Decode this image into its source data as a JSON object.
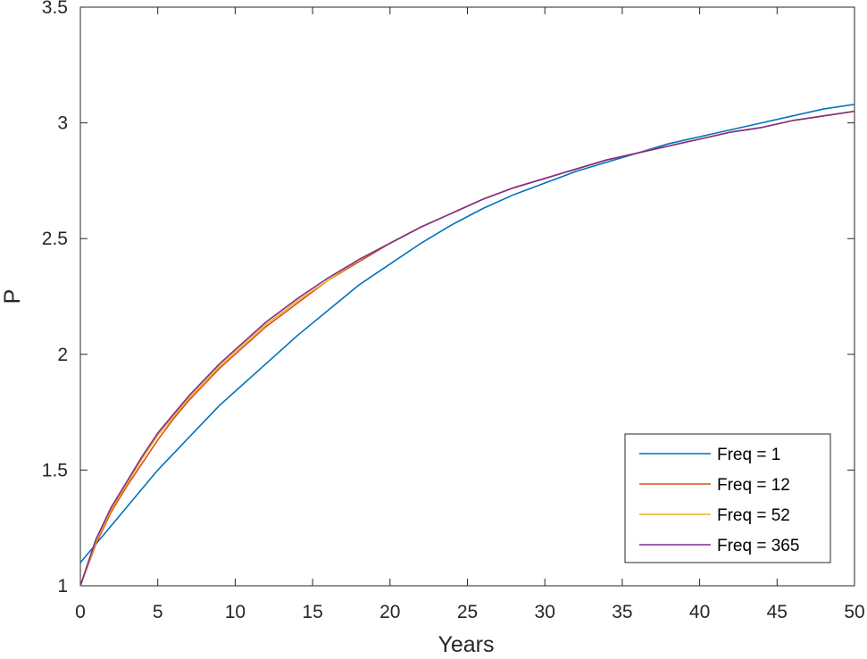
{
  "chart_data": {
    "type": "line",
    "title": "",
    "xlabel": "Years",
    "ylabel": "P",
    "xlim": [
      0,
      50
    ],
    "ylim": [
      1,
      3.5
    ],
    "xticks": [
      "0",
      "5",
      "10",
      "15",
      "20",
      "25",
      "30",
      "35",
      "40",
      "45",
      "50"
    ],
    "yticks": [
      "1",
      "1.5",
      "2",
      "2.5",
      "3",
      "3.5"
    ],
    "grid": false,
    "legend_position": "bottom-right",
    "x": [
      0,
      1,
      2,
      3,
      4,
      5,
      6,
      7,
      8,
      9,
      10,
      12,
      14,
      16,
      18,
      20,
      22,
      24,
      26,
      28,
      30,
      32,
      34,
      36,
      38,
      40,
      42,
      44,
      46,
      48,
      50
    ],
    "series": [
      {
        "name": "Freq = 1",
        "color": "#0072BD",
        "values": [
          1.1,
          1.18,
          1.26,
          1.34,
          1.42,
          1.5,
          1.57,
          1.64,
          1.71,
          1.78,
          1.84,
          1.96,
          2.08,
          2.19,
          2.3,
          2.39,
          2.48,
          2.56,
          2.63,
          2.69,
          2.74,
          2.79,
          2.83,
          2.87,
          2.91,
          2.94,
          2.97,
          3.0,
          3.03,
          3.06,
          3.08
        ]
      },
      {
        "name": "Freq = 12",
        "color": "#D95319",
        "values": [
          1.0,
          1.18,
          1.32,
          1.43,
          1.53,
          1.63,
          1.72,
          1.8,
          1.87,
          1.94,
          2.0,
          2.12,
          2.22,
          2.32,
          2.4,
          2.48,
          2.55,
          2.61,
          2.67,
          2.72,
          2.76,
          2.8,
          2.84,
          2.87,
          2.9,
          2.93,
          2.96,
          2.98,
          3.01,
          3.03,
          3.05
        ]
      },
      {
        "name": "Freq = 52",
        "color": "#EDB120",
        "values": [
          1.0,
          1.19,
          1.33,
          1.44,
          1.55,
          1.65,
          1.73,
          1.81,
          1.88,
          1.95,
          2.01,
          2.13,
          2.23,
          2.32,
          2.41,
          2.48,
          2.55,
          2.61,
          2.67,
          2.72,
          2.76,
          2.8,
          2.84,
          2.87,
          2.9,
          2.93,
          2.96,
          2.98,
          3.01,
          3.03,
          3.05
        ]
      },
      {
        "name": "Freq = 365",
        "color": "#7E2F8E",
        "values": [
          1.0,
          1.2,
          1.34,
          1.45,
          1.56,
          1.66,
          1.74,
          1.82,
          1.89,
          1.96,
          2.02,
          2.14,
          2.24,
          2.33,
          2.41,
          2.48,
          2.55,
          2.61,
          2.67,
          2.72,
          2.76,
          2.8,
          2.84,
          2.87,
          2.9,
          2.93,
          2.96,
          2.98,
          3.01,
          3.03,
          3.05
        ]
      }
    ]
  }
}
